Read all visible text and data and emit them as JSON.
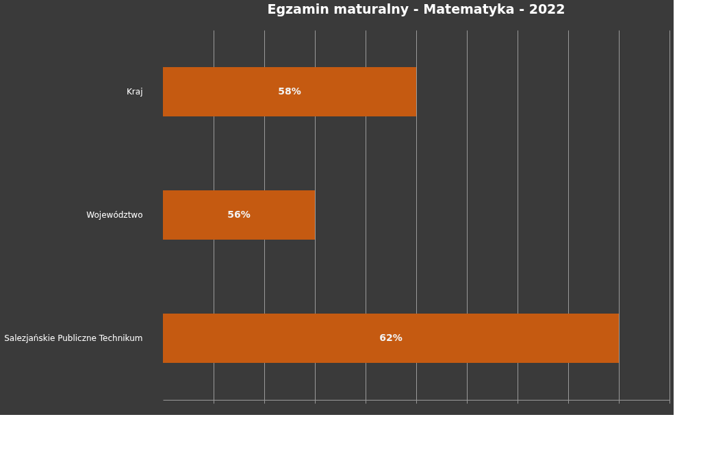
{
  "chart_data": {
    "type": "bar",
    "orientation": "horizontal",
    "title": "Egzamin maturalny - Matematyka - 2022",
    "categories": [
      "Kraj",
      "Województwo",
      "Salezjańskie Publiczne Technikum"
    ],
    "values": [
      58,
      56,
      62
    ],
    "color": "#c55a11",
    "value_labels": [
      "58%",
      "56%",
      "62%"
    ],
    "xlim": [
      53,
      63
    ],
    "xticks": [
      {
        "value": 54,
        "label": null
      },
      {
        "value": 55,
        "label": null
      },
      {
        "value": 56,
        "label": null
      },
      {
        "value": 57,
        "label": null
      },
      {
        "value": 58,
        "label": null
      },
      {
        "value": 59,
        "label": null
      },
      {
        "value": 60,
        "label": null
      },
      {
        "value": 61,
        "label": null
      },
      {
        "value": 62,
        "label": null
      },
      {
        "value": 63,
        "label": null
      }
    ],
    "grid": "x"
  }
}
